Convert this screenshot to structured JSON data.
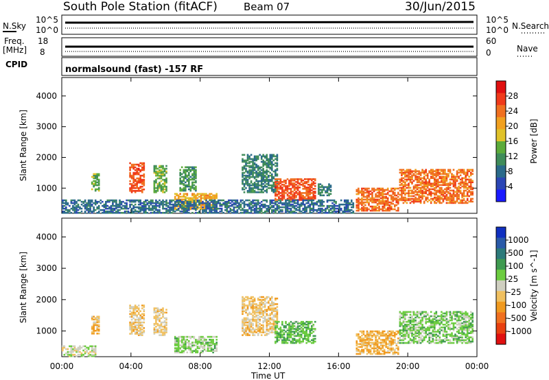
{
  "header": {
    "station": "South Pole Station (fitACF)",
    "beam": "Beam 07",
    "date": "30/Jun/2015"
  },
  "strip_labels": {
    "nsky": "N.Sky",
    "nsky_top": "10^5",
    "nsky_bot": "10^0",
    "nsearch": "N.Search",
    "nsearch_top": "10^5",
    "nsearch_bot": "10^0",
    "freq": "Freq.",
    "freq_unit": "[MHz]",
    "freq_top": "18",
    "freq_bot": "8",
    "nave": "Nave",
    "nave_top": "60",
    "nave_bot": "0",
    "cpid": "CPID",
    "cpid_text": "normalsound (fast) -157 RF"
  },
  "colors": {
    "power": [
      "#1a1aff",
      "#2b46b5",
      "#2a6a8a",
      "#3f8c5a",
      "#5cab3a",
      "#e0c22a",
      "#f0a020",
      "#f07020",
      "#f03a1a",
      "#e01010"
    ],
    "velocity": [
      "#1030c0",
      "#2a5aa8",
      "#2c7a7a",
      "#3f9a50",
      "#6ccc40",
      "#cfcfc0",
      "#f0c060",
      "#f09a20",
      "#f07020",
      "#e84010",
      "#e01010"
    ]
  },
  "chart_data": [
    {
      "type": "heatmap",
      "name": "power",
      "ylabel": "Slant Range [km]",
      "xlabel": "Time UT",
      "x_ticks": [
        "00:00",
        "04:00",
        "08:00",
        "12:00",
        "16:00",
        "20:00",
        "00:00"
      ],
      "y_ticks": [
        "1000",
        "2000",
        "3000",
        "4000"
      ],
      "ylim": [
        180,
        4600
      ],
      "colorbar": {
        "label": "Power [dB]",
        "ticks": [
          "4",
          "8",
          "12",
          "16",
          "20",
          "24",
          "28"
        ]
      },
      "patches": [
        {
          "t": [
            1.7,
            2.2
          ],
          "r": [
            900,
            1450
          ],
          "v": 14
        },
        {
          "t": [
            3.9,
            4.7
          ],
          "r": [
            850,
            1800
          ],
          "v": 26
        },
        {
          "t": [
            5.3,
            6.0
          ],
          "r": [
            850,
            1750
          ],
          "v": 14
        },
        {
          "t": [
            6.5,
            8.9
          ],
          "r": [
            300,
            800
          ],
          "v": 20
        },
        {
          "t": [
            6.8,
            7.7
          ],
          "r": [
            900,
            1700
          ],
          "v": 12
        },
        {
          "t": [
            10.4,
            12.4
          ],
          "r": [
            850,
            2100
          ],
          "v": 10
        },
        {
          "t": [
            12.3,
            14.6
          ],
          "r": [
            600,
            1300
          ],
          "v": 26
        },
        {
          "t": [
            14.8,
            15.5
          ],
          "r": [
            750,
            1150
          ],
          "v": 10
        },
        {
          "t": [
            17.0,
            19.5
          ],
          "r": [
            250,
            1000
          ],
          "v": 24
        },
        {
          "t": [
            19.5,
            23.8
          ],
          "r": [
            500,
            1600
          ],
          "v": 24
        },
        {
          "t": [
            0.0,
            16.8
          ],
          "r": [
            180,
            600
          ],
          "v": 8
        }
      ]
    },
    {
      "type": "heatmap",
      "name": "velocity",
      "ylabel": "Slant Range [km]",
      "xlabel": "Time UT",
      "x_ticks": [
        "00:00",
        "04:00",
        "08:00",
        "12:00",
        "16:00",
        "20:00",
        "00:00"
      ],
      "y_ticks": [
        "1000",
        "2000",
        "3000",
        "4000"
      ],
      "ylim": [
        180,
        4600
      ],
      "colorbar": {
        "label": "Velocity [m s^-1]",
        "ticks": [
          "1000",
          "500",
          "100",
          "25",
          "-25",
          "-100",
          "-500",
          "-1000"
        ]
      },
      "patches": [
        {
          "t": [
            1.7,
            2.2
          ],
          "r": [
            900,
            1450
          ],
          "v": -300
        },
        {
          "t": [
            3.9,
            4.7
          ],
          "r": [
            850,
            1800
          ],
          "v": -200
        },
        {
          "t": [
            5.3,
            6.0
          ],
          "r": [
            850,
            1750
          ],
          "v": -150
        },
        {
          "t": [
            6.5,
            8.9
          ],
          "r": [
            300,
            800
          ],
          "v": 150
        },
        {
          "t": [
            10.4,
            12.4
          ],
          "r": [
            850,
            2100
          ],
          "v": -200
        },
        {
          "t": [
            12.3,
            14.6
          ],
          "r": [
            600,
            1300
          ],
          "v": 300
        },
        {
          "t": [
            17.0,
            19.5
          ],
          "r": [
            250,
            1000
          ],
          "v": -300
        },
        {
          "t": [
            19.5,
            23.8
          ],
          "r": [
            600,
            1600
          ],
          "v": 200
        },
        {
          "t": [
            0.0,
            2.0
          ],
          "r": [
            180,
            500
          ],
          "v": 0
        }
      ]
    }
  ]
}
